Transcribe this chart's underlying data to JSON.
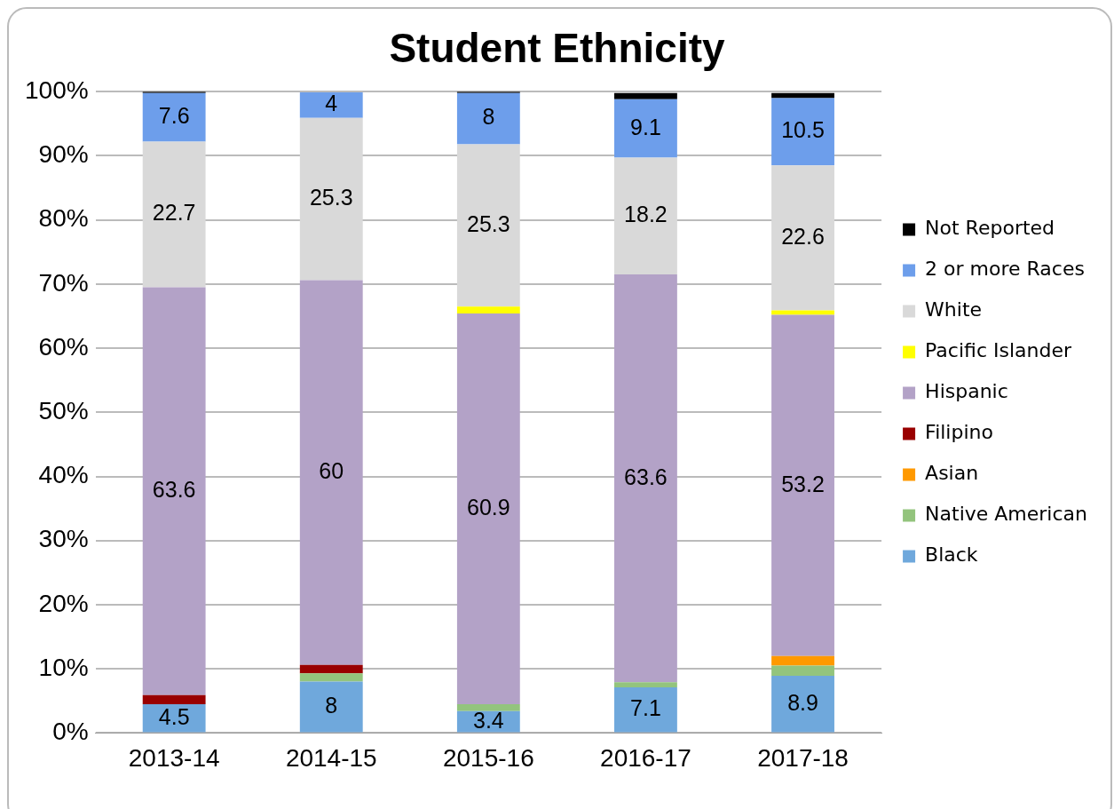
{
  "chart_data": {
    "type": "bar",
    "title": "Student Ethnicity",
    "stacked": true,
    "categories": [
      "2013-14",
      "2014-15",
      "2015-16",
      "2016-17",
      "2017-18"
    ],
    "series": [
      {
        "name": "Black",
        "color": "#6fa8dc",
        "values": [
          4.5,
          8,
          3.4,
          7.1,
          8.9
        ],
        "value_labels": [
          "4.5",
          "8",
          "3.4",
          "7.1",
          "8.9"
        ]
      },
      {
        "name": "Native American",
        "color": "#93c47d",
        "values": [
          null,
          1.3,
          1.1,
          0.8,
          1.6
        ]
      },
      {
        "name": "Asian",
        "color": "#ff9900",
        "values": [
          null,
          null,
          null,
          null,
          1.5
        ]
      },
      {
        "name": "Filipino",
        "color": "#990000",
        "values": [
          1.4,
          1.3,
          null,
          null,
          null
        ]
      },
      {
        "name": "Hispanic",
        "color": "#b3a2c7",
        "values": [
          63.6,
          60,
          60.9,
          63.6,
          53.2
        ],
        "value_labels": [
          "63.6",
          "60",
          "60.9",
          "63.6",
          "53.2"
        ]
      },
      {
        "name": "Pacific Islander",
        "color": "#ffff00",
        "values": [
          null,
          null,
          1.1,
          null,
          0.7
        ]
      },
      {
        "name": "White",
        "color": "#d9d9d9",
        "values": [
          22.7,
          25.3,
          25.3,
          18.2,
          22.6
        ],
        "value_labels": [
          "22.7",
          "25.3",
          "25.3",
          "18.2",
          "22.6"
        ]
      },
      {
        "name": "2 or more Races",
        "color": "#6d9eeb",
        "values": [
          7.6,
          4,
          8,
          9.1,
          10.5
        ],
        "value_labels": [
          "7.6",
          "4",
          "8",
          "9.1",
          "10.5"
        ]
      },
      {
        "name": "Not Reported",
        "color": "#000000",
        "values": [
          0.2,
          null,
          0.2,
          1.0,
          0.8
        ]
      }
    ],
    "ylim": [
      0,
      100
    ],
    "yticks": [
      {
        "value": 0,
        "label": "0%"
      },
      {
        "value": 10,
        "label": "10%"
      },
      {
        "value": 20,
        "label": "20%"
      },
      {
        "value": 30,
        "label": "30%"
      },
      {
        "value": 40,
        "label": "40%"
      },
      {
        "value": 50,
        "label": "50%"
      },
      {
        "value": 60,
        "label": "60%"
      },
      {
        "value": 70,
        "label": "70%"
      },
      {
        "value": 80,
        "label": "80%"
      },
      {
        "value": 90,
        "label": "90%"
      },
      {
        "value": 100,
        "label": "100%"
      }
    ],
    "grid": "y",
    "legend": "right"
  }
}
